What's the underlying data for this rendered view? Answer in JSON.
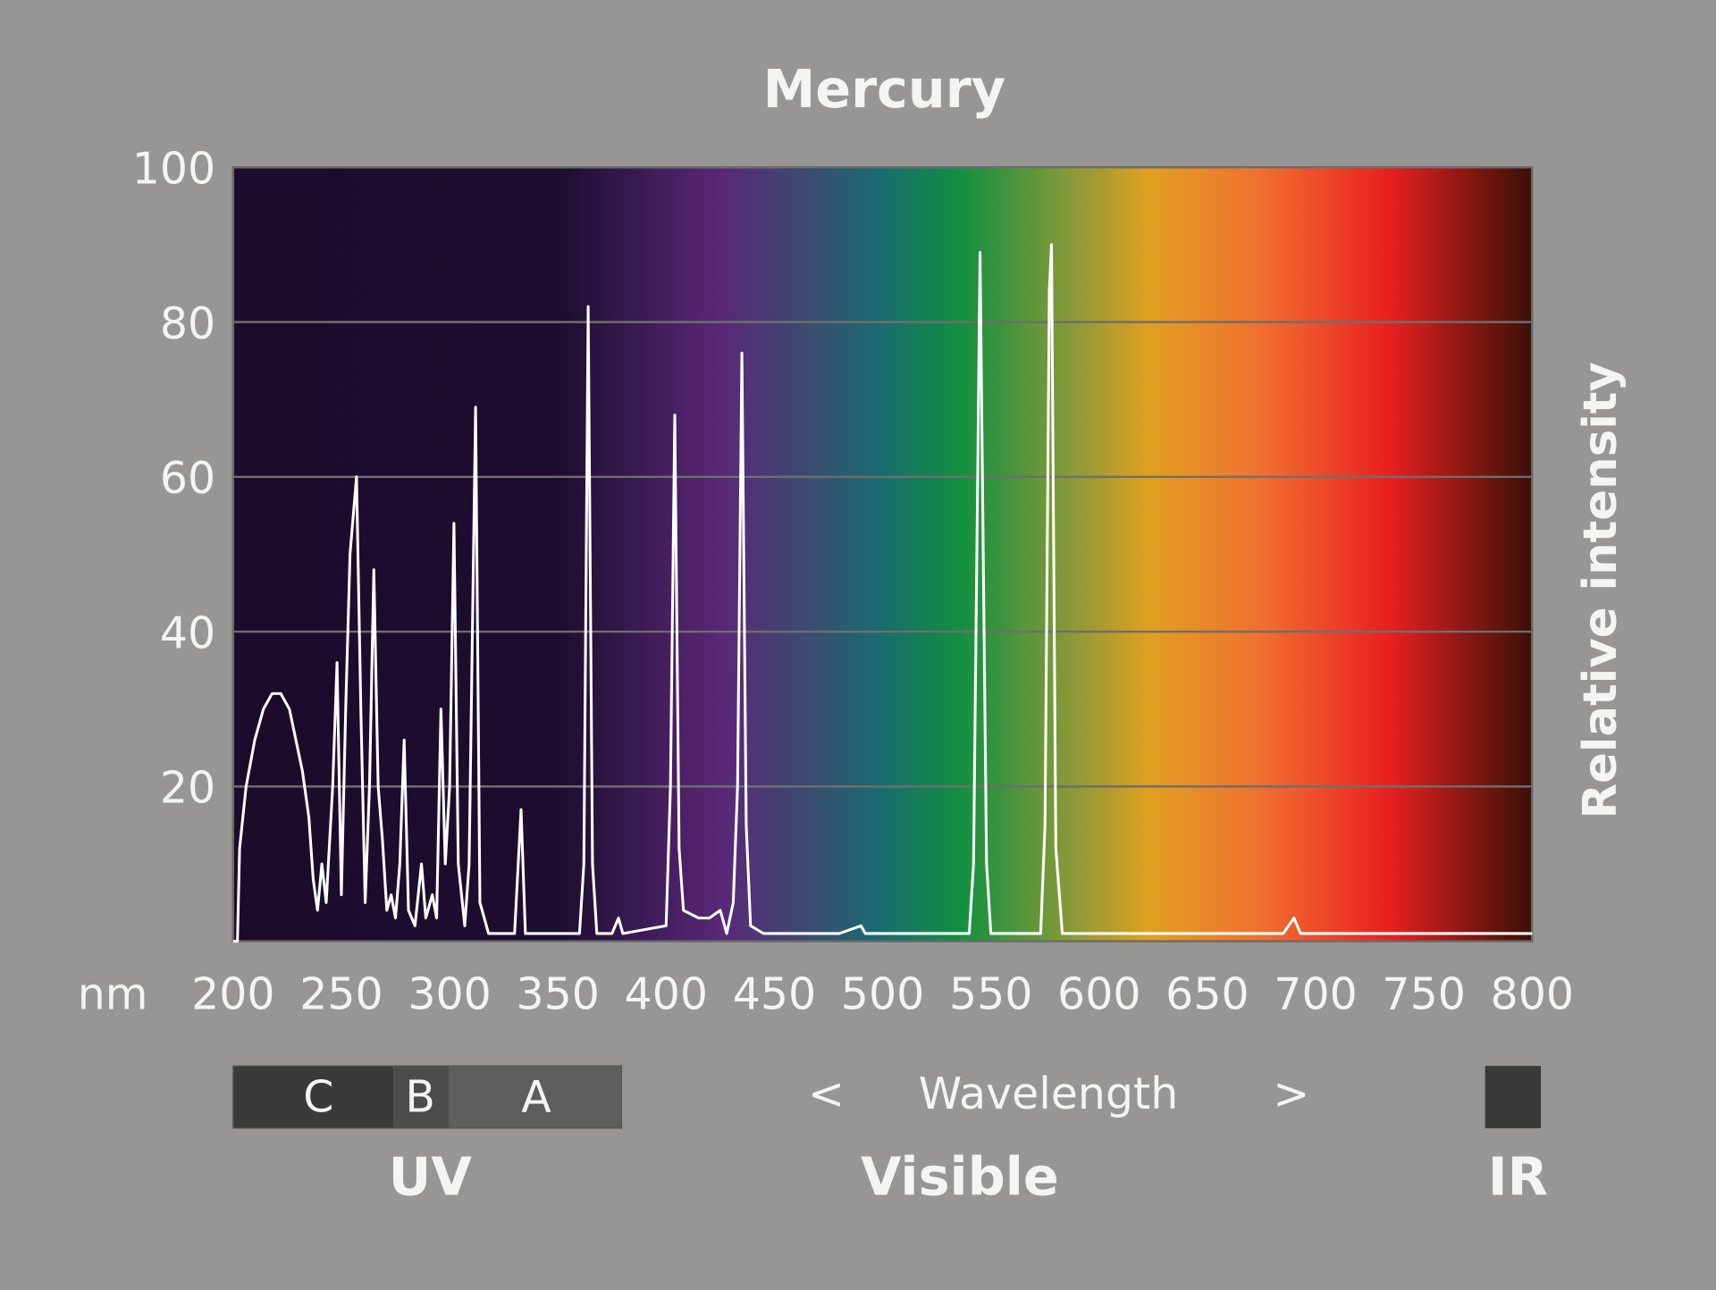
{
  "chart_data": {
    "type": "line",
    "title": "Mercury",
    "xlabel": "nm",
    "ylabel": "Relative intensity",
    "xlim": [
      200,
      800
    ],
    "ylim": [
      0,
      100
    ],
    "xticks": [
      200,
      250,
      300,
      350,
      400,
      450,
      500,
      550,
      600,
      650,
      700,
      750,
      800
    ],
    "yticks": [
      20,
      40,
      60,
      80,
      100
    ],
    "grid": true,
    "series": [
      {
        "name": "Mercury",
        "color": "#ffffff",
        "x": [
          200,
          202,
          203,
          206,
          210,
          214,
          218,
          222,
          226,
          229,
          232,
          235,
          237,
          239,
          241,
          243,
          246,
          248,
          250,
          252,
          254,
          257,
          259,
          261,
          263,
          265,
          267,
          269,
          271,
          273,
          275,
          277,
          279,
          281,
          284,
          287,
          289,
          292,
          294,
          296,
          298,
          300,
          302,
          304,
          307,
          309,
          312,
          314,
          318,
          324,
          330,
          333,
          335,
          345,
          360,
          362,
          364,
          366,
          368,
          375,
          378,
          380,
          400,
          402,
          404,
          406,
          408,
          415,
          420,
          425,
          428,
          431,
          433,
          435,
          437,
          439,
          445,
          480,
          490,
          492,
          540,
          542,
          545,
          548,
          550,
          573,
          575,
          577,
          578,
          580,
          583,
          685,
          690,
          693,
          800
        ],
        "values": [
          0,
          0,
          12,
          20,
          26,
          30,
          32,
          32,
          30,
          26,
          22,
          16,
          8,
          4,
          10,
          5,
          20,
          36,
          6,
          30,
          50,
          60,
          30,
          5,
          20,
          48,
          20,
          13,
          4,
          6,
          3,
          10,
          26,
          4,
          2,
          10,
          3,
          6,
          3,
          30,
          10,
          20,
          54,
          10,
          2,
          10,
          69,
          5,
          1,
          1,
          1,
          17,
          1,
          1,
          1,
          10,
          82,
          10,
          1,
          1,
          3,
          1,
          2,
          20,
          68,
          12,
          4,
          3,
          3,
          4,
          1,
          5,
          20,
          76,
          15,
          2,
          1,
          1,
          2,
          1,
          1,
          10,
          89,
          10,
          1,
          1,
          15,
          84,
          90,
          12,
          1,
          1,
          3,
          1,
          1
        ]
      }
    ]
  },
  "band_bar": {
    "segments": [
      "C",
      "B",
      "A"
    ],
    "arrow_left": "<",
    "center": "Wavelength",
    "arrow_right": ">",
    "regions": [
      "UV",
      "Visible",
      "IR"
    ]
  }
}
